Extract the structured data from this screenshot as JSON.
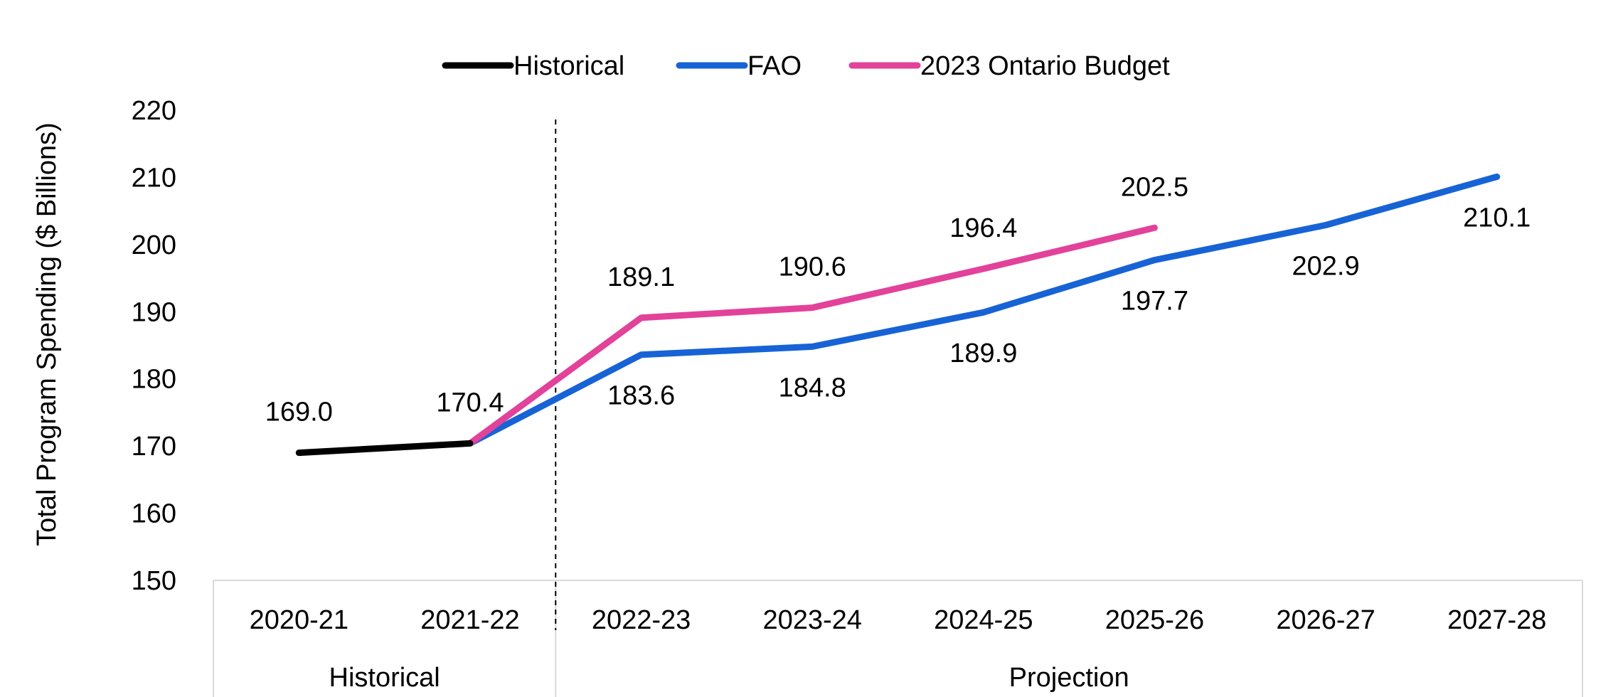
{
  "chart_data": {
    "type": "line",
    "ylabel": "Total Program Spending ($ Billions)",
    "ylim": [
      150,
      220
    ],
    "yticks": [
      150,
      160,
      170,
      180,
      190,
      200,
      210,
      220
    ],
    "categories": [
      "2020-21",
      "2021-22",
      "2022-23",
      "2023-24",
      "2024-25",
      "2025-26",
      "2026-27",
      "2027-28"
    ],
    "groups": [
      {
        "label": "Historical",
        "categories": [
          "2020-21",
          "2021-22"
        ]
      },
      {
        "label": "Projection",
        "categories": [
          "2022-23",
          "2023-24",
          "2024-25",
          "2025-26",
          "2026-27",
          "2027-28"
        ]
      }
    ],
    "legend_position": "top",
    "grid": false,
    "divider_after_category": "2021-22",
    "series": [
      {
        "name": "Historical",
        "color": "#000000",
        "values": [
          169.0,
          170.4,
          null,
          null,
          null,
          null,
          null,
          null
        ],
        "labels": [
          "169.0",
          "170.4",
          null,
          null,
          null,
          null,
          null,
          null
        ],
        "label_position": [
          "above",
          "above"
        ]
      },
      {
        "name": "FAO",
        "color": "#1763d6",
        "values": [
          null,
          170.4,
          183.6,
          184.8,
          189.9,
          197.7,
          202.9,
          210.1
        ],
        "labels": [
          null,
          null,
          "183.6",
          "184.8",
          "189.9",
          "197.7",
          "202.9",
          "210.1"
        ],
        "label_position": "below"
      },
      {
        "name": "2023 Ontario Budget",
        "color": "#e2429a",
        "values": [
          null,
          170.4,
          189.1,
          190.6,
          196.4,
          202.5,
          null,
          null
        ],
        "labels": [
          null,
          null,
          "189.1",
          "190.6",
          "196.4",
          "202.5",
          null,
          null
        ],
        "label_position": "above"
      }
    ]
  }
}
